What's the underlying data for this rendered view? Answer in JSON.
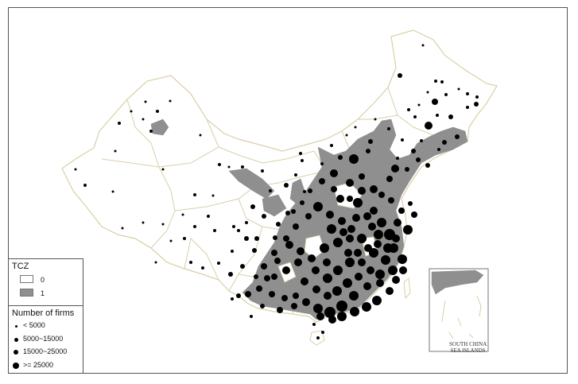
{
  "legend": {
    "tcz": {
      "title": "TCZ",
      "items": [
        {
          "label": "0",
          "fill": "#ffffff"
        },
        {
          "label": "1",
          "fill": "#8f8f8f"
        }
      ]
    },
    "firms": {
      "title": "Number of firms",
      "items": [
        {
          "label": "< 5000",
          "size": "small"
        },
        {
          "label": "5000~15000",
          "size": "medium"
        },
        {
          "label": "15000~25000",
          "size": "large"
        },
        {
          "label": ">= 25000",
          "size": "xlarge"
        }
      ]
    }
  },
  "inset": {
    "line1": "SOUTH CHINA",
    "line2": "SEA ISLANDS"
  },
  "colors": {
    "border": "#d9cfa8",
    "tcz_fill": "#8f8f8f",
    "dot": "#000000"
  }
}
